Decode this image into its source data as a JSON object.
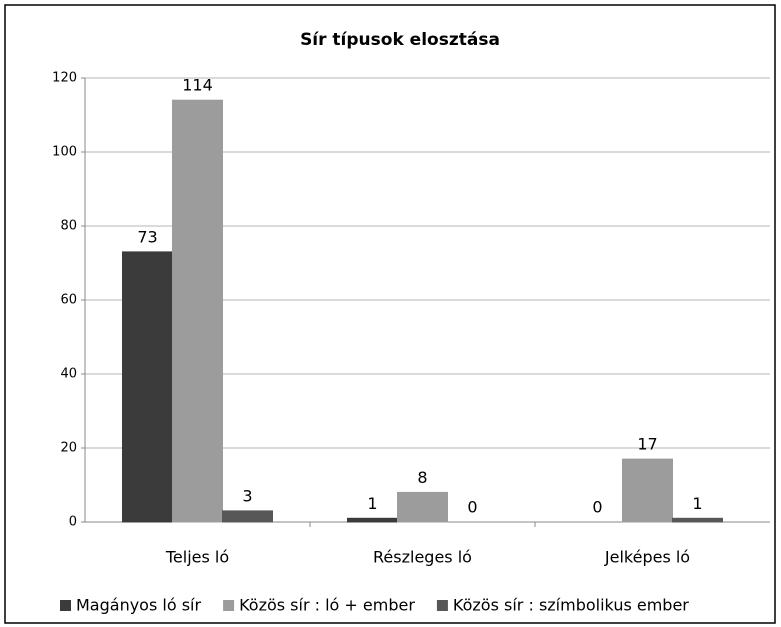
{
  "chart_data": {
    "type": "bar",
    "title": "Sír típusok elosztása",
    "categories": [
      "Teljes ló",
      "Részleges ló",
      "Jelképes ló"
    ],
    "series": [
      {
        "name": "Magányos ló sír",
        "color": "#3b3b3b",
        "values": [
          73,
          1,
          0
        ]
      },
      {
        "name": "Közös sír : ló + ember",
        "color": "#9c9c9c",
        "values": [
          114,
          8,
          17
        ]
      },
      {
        "name": "Közös sír : szímbolikus ember",
        "color": "#575757",
        "values": [
          3,
          0,
          1
        ]
      }
    ],
    "ylim": [
      0,
      120
    ],
    "yticks": [
      0,
      20,
      40,
      60,
      80,
      100,
      120
    ],
    "grid": true,
    "legend": "bottom"
  }
}
